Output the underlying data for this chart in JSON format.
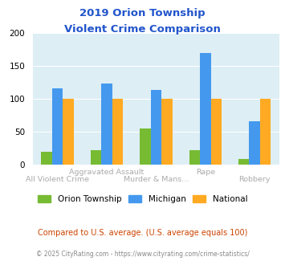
{
  "title_line1": "2019 Orion Township",
  "title_line2": "Violent Crime Comparison",
  "title_color": "#2255cc",
  "categories": [
    "All Violent Crime",
    "Aggravated Assault",
    "Murder & Mans...",
    "Rape",
    "Robbery"
  ],
  "label_row1": [
    "",
    "Aggravated Assault",
    "",
    "Rape",
    ""
  ],
  "label_row2": [
    "All Violent Crime",
    "",
    "Murder & Mans...",
    "",
    "Robbery"
  ],
  "orion_values": [
    19,
    21,
    55,
    21,
    8
  ],
  "michigan_values": [
    116,
    123,
    113,
    170,
    66
  ],
  "national_values": [
    100,
    100,
    100,
    100,
    100
  ],
  "orion_color": "#77bb33",
  "michigan_color": "#4499ee",
  "national_color": "#ffaa22",
  "ylim": [
    0,
    200
  ],
  "yticks": [
    0,
    50,
    100,
    150,
    200
  ],
  "bg_color": "#ddeef5",
  "fig_bg": "#ffffff",
  "legend_labels": [
    "Orion Township",
    "Michigan",
    "National"
  ],
  "footnote1": "Compared to U.S. average. (U.S. average equals 100)",
  "footnote2": "© 2025 CityRating.com - https://www.cityrating.com/crime-statistics/",
  "footnote1_color": "#cc4400",
  "footnote2_color": "#888888",
  "label_color": "#aaaaaa"
}
